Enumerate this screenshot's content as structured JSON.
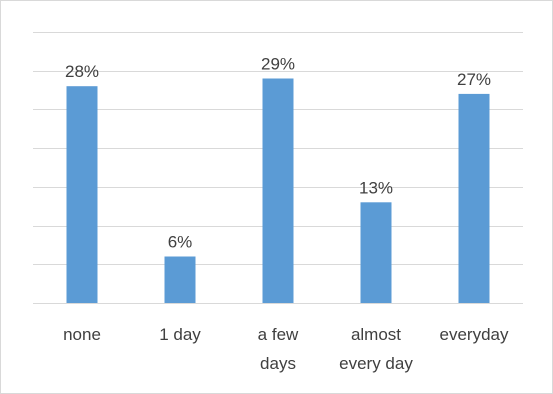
{
  "chart_data": {
    "type": "bar",
    "categories": [
      "none",
      "1 day",
      "a few days",
      "almost every day",
      "everyday"
    ],
    "category_lines": [
      [
        "none"
      ],
      [
        "1 day"
      ],
      [
        "a few",
        "days"
      ],
      [
        "almost",
        "every day"
      ],
      [
        "everyday"
      ]
    ],
    "values": [
      28,
      6,
      29,
      13,
      27
    ],
    "data_labels": [
      "28%",
      "6%",
      "29%",
      "13%",
      "27%"
    ],
    "ylim": [
      0,
      35
    ],
    "y_grid_step": 5,
    "grid": true,
    "legend": "none",
    "bar_color": "#5b9bd5",
    "grid_color": "#d9d9d9",
    "text_color": "#404040"
  }
}
